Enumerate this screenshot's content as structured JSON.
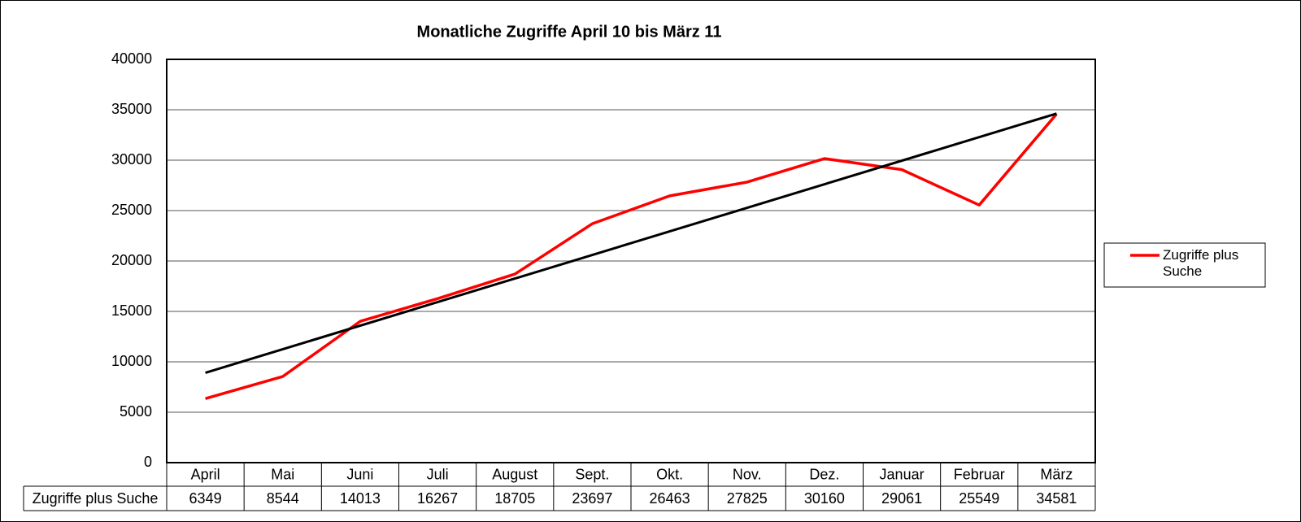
{
  "chart_data": {
    "type": "line",
    "title": "Monatliche Zugriffe April 10 bis März 11",
    "categories": [
      "April",
      "Mai",
      "Juni",
      "Juli",
      "August",
      "Sept.",
      "Okt.",
      "Nov.",
      "Dez.",
      "Januar",
      "Februar",
      "März"
    ],
    "series": [
      {
        "name": "Zugriffe plus Suche",
        "color": "#ff0000",
        "values": [
          6349,
          8544,
          14013,
          16267,
          18705,
          23697,
          26463,
          27825,
          30160,
          29061,
          25549,
          34581
        ]
      }
    ],
    "trendline": {
      "color": "#000000",
      "values": [
        8912,
        34624
      ]
    },
    "ylim": [
      0,
      40000
    ],
    "yticks": [
      0,
      5000,
      10000,
      15000,
      20000,
      25000,
      30000,
      35000,
      40000
    ],
    "grid": true,
    "legend": "right",
    "data_table": true
  }
}
